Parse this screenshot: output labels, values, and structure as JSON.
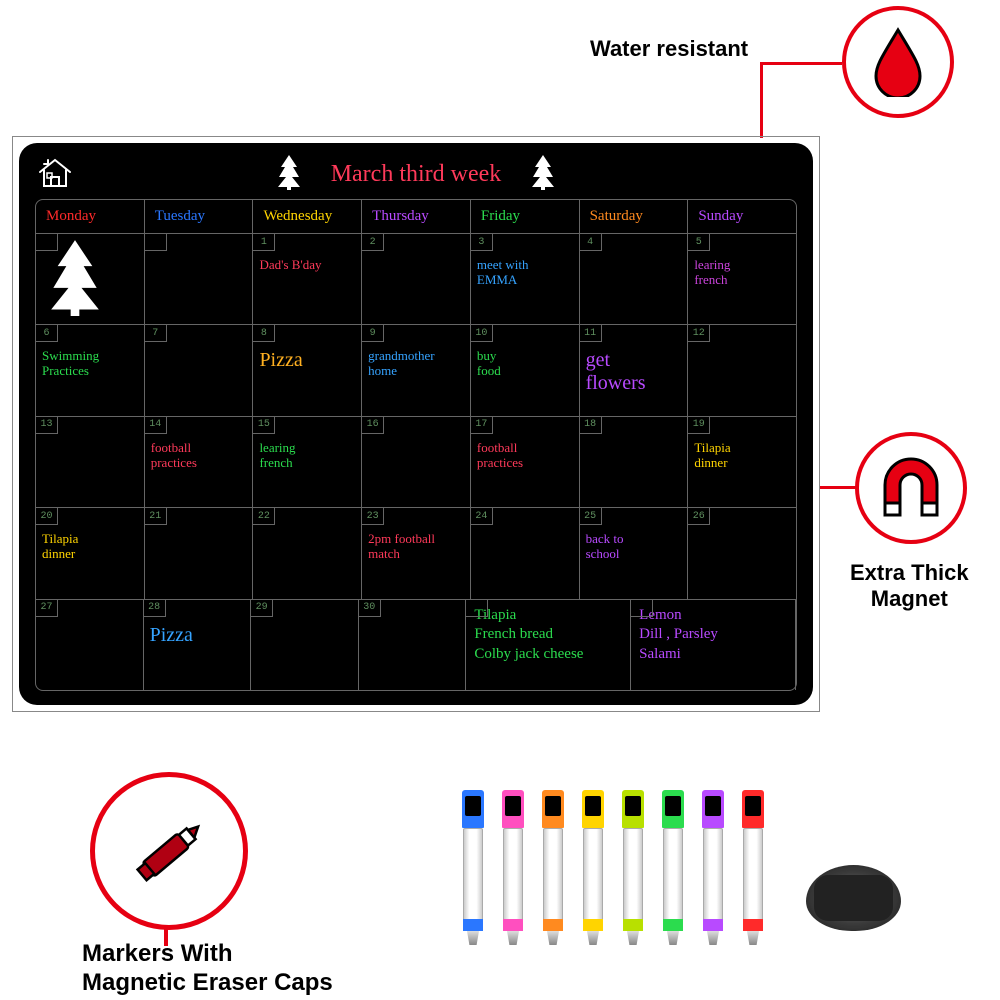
{
  "features": {
    "water": {
      "label": "Water resistant",
      "icon_color": "#e60012",
      "ring_color": "#e60012"
    },
    "magnet": {
      "label": "Extra Thick\nMagnet",
      "icon_color": "#e60012",
      "ring_color": "#e60012"
    },
    "markers": {
      "label": "Markers With\nMagnetic Eraser Caps",
      "icon_color": "#b00012",
      "ring_color": "#e60012"
    }
  },
  "board": {
    "title": "March third week",
    "title_color": "#ff3a5a",
    "bg": "#000000",
    "grid_color": "#666666",
    "days": [
      {
        "name": "Monday",
        "color": "#ff2a2a"
      },
      {
        "name": "Tuesday",
        "color": "#2a77ff"
      },
      {
        "name": "Wednesday",
        "color": "#ffd400"
      },
      {
        "name": "Thursday",
        "color": "#b84aff"
      },
      {
        "name": "Friday",
        "color": "#2bdc4e"
      },
      {
        "name": "Saturday",
        "color": "#ff8a1f"
      },
      {
        "name": "Sunday",
        "color": "#b84aff"
      }
    ],
    "weeks": [
      [
        {
          "num": "",
          "text": "",
          "color": "#ffffff",
          "tree": true
        },
        {
          "num": "",
          "text": ""
        },
        {
          "num": "1",
          "text": "Dad's B'day",
          "color": "#ff3a5a"
        },
        {
          "num": "2",
          "text": ""
        },
        {
          "num": "3",
          "text": "meet with\nEMMA",
          "color": "#35a3ff"
        },
        {
          "num": "4",
          "text": ""
        },
        {
          "num": "5",
          "text": "learing\nfrench",
          "color": "#cc44dd"
        }
      ],
      [
        {
          "num": "6",
          "text": "Swimming\nPractices",
          "color": "#2bdc4e"
        },
        {
          "num": "7",
          "text": ""
        },
        {
          "num": "8",
          "text": "Pizza",
          "color": "#ffb020",
          "big": true
        },
        {
          "num": "9",
          "text": "grandmother\nhome",
          "color": "#35a3ff"
        },
        {
          "num": "10",
          "text": "buy\nfood",
          "color": "#2bdc4e"
        },
        {
          "num": "11",
          "text": "get\nflowers",
          "color": "#b84aff",
          "big": true
        },
        {
          "num": "12",
          "text": ""
        }
      ],
      [
        {
          "num": "13",
          "text": ""
        },
        {
          "num": "14",
          "text": "football\npractices",
          "color": "#ff3a5a"
        },
        {
          "num": "15",
          "text": "learing\nfrench",
          "color": "#2bdc4e"
        },
        {
          "num": "16",
          "text": ""
        },
        {
          "num": "17",
          "text": "football\npractices",
          "color": "#ff3a5a"
        },
        {
          "num": "18",
          "text": ""
        },
        {
          "num": "19",
          "text": "Tilapia\ndinner",
          "color": "#ffd400"
        }
      ],
      [
        {
          "num": "20",
          "text": "Tilapia\ndinner",
          "color": "#ffd400"
        },
        {
          "num": "21",
          "text": ""
        },
        {
          "num": "22",
          "text": ""
        },
        {
          "num": "23",
          "text": "2pm football\nmatch",
          "color": "#ff3a5a"
        },
        {
          "num": "24",
          "text": ""
        },
        {
          "num": "25",
          "text": "back to\nschool",
          "color": "#b84aff"
        },
        {
          "num": "26",
          "text": ""
        }
      ],
      [
        {
          "num": "27",
          "text": ""
        },
        {
          "num": "28",
          "text": "Pizza",
          "color": "#35a3ff",
          "big": true
        },
        {
          "num": "29",
          "text": ""
        },
        {
          "num": "30",
          "text": ""
        }
      ]
    ],
    "notes_left": {
      "text": "Tilapia\nFrench bread\nColby jack cheese",
      "color": "#2bdc4e"
    },
    "notes_right": {
      "text": "Lemon\nDill , Parsley\nSalami",
      "color": "#b84aff"
    }
  },
  "markers": {
    "colors": [
      "#2a77ff",
      "#ff4fbf",
      "#ff8a1f",
      "#ffd400",
      "#b8e000",
      "#2bdc4e",
      "#b84aff",
      "#ff2a2a"
    ]
  }
}
